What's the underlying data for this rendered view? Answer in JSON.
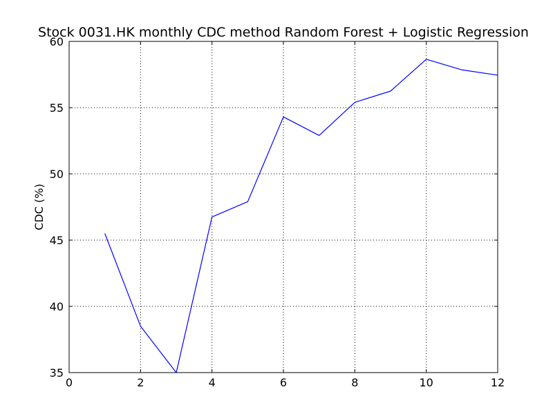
{
  "chart_data": {
    "type": "line",
    "title": "Stock 0031.HK monthly CDC method Random Forest + Logistic Regression",
    "xlabel": "",
    "ylabel": "CDC (%)",
    "xlim": [
      0,
      12
    ],
    "ylim": [
      35,
      60
    ],
    "xticks": [
      0,
      2,
      4,
      6,
      8,
      10,
      12
    ],
    "yticks": [
      35,
      40,
      45,
      50,
      55,
      60
    ],
    "grid": true,
    "grid_style": "dotted",
    "series": [
      {
        "color": "#0000ff",
        "x": [
          1,
          2,
          3,
          4,
          5,
          6,
          7,
          8,
          9,
          10,
          11,
          12
        ],
        "y": [
          45.5,
          38.5,
          35.0,
          46.75,
          47.9,
          54.3,
          52.9,
          55.4,
          56.25,
          58.65,
          57.85,
          57.45
        ]
      }
    ]
  }
}
